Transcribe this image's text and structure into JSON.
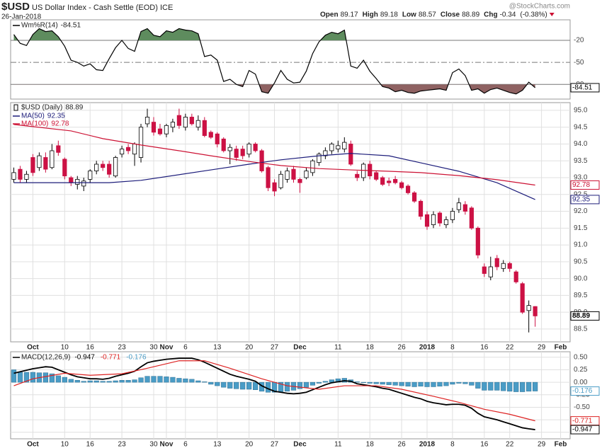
{
  "header": {
    "symbol": "$USD",
    "name": "US Dollar Index - Cash Settle (EOD) ICE",
    "date": "26-Jan-2018",
    "source": "@StockCharts.com",
    "quote_labels": [
      "Open",
      "High",
      "Low",
      "Close",
      "Chg"
    ],
    "change": -0.34,
    "change_pct": "(-0.38%)"
  },
  "chart_data": [
    {
      "type": "williams",
      "xlim": [
        -0.5,
        87.5
      ],
      "ylim": [
        -100,
        8
      ],
      "yticks": [
        -20,
        -50,
        -80
      ],
      "grid_style": [
        "solid",
        "dashdot",
        "solid"
      ],
      "fill_above_color": "#5e8c5e",
      "fill_below_color": "#8f6262",
      "series": [
        {
          "name": "Wm%R(14)",
          "color": "#000000",
          "values": [
            -12,
            -24,
            -27,
            -12,
            -4,
            -8,
            -7,
            -15,
            -28,
            -47,
            -50,
            -55,
            -52,
            -60,
            -61,
            -45,
            -30,
            -20,
            -31,
            -35,
            -8,
            -4,
            -13,
            -15,
            -7,
            -9,
            -4,
            -6,
            -7,
            -11,
            -42,
            -40,
            -47,
            -76,
            -73,
            -80,
            -83,
            -61,
            -66,
            -90,
            -92,
            -78,
            -61,
            -73,
            -78,
            -77,
            -62,
            -38,
            -22,
            -13,
            -9,
            -11,
            -6,
            -55,
            -58,
            -47,
            -62,
            -72,
            -83,
            -85,
            -90,
            -88,
            -91,
            -92,
            -89,
            -88,
            -87,
            -86,
            -88,
            -64,
            -59,
            -68,
            -88,
            -86,
            -92,
            -87,
            -85,
            -88,
            -91,
            -93,
            -88,
            -77,
            -84.51
          ]
        }
      ]
    },
    {
      "type": "candlestick",
      "name": "$USD (Daily)",
      "xlim": [
        -0.5,
        87.5
      ],
      "ylim": [
        88.12,
        95.23
      ],
      "up_color": "#ffffff",
      "down_color": "#cc1144",
      "grid": true,
      "yticks": [
        88.5,
        {
          "value": 89,
          "label": "89.0"
        },
        89.5,
        {
          "value": 90,
          "label": "90.0"
        },
        90.5,
        {
          "value": 91,
          "label": "91.0"
        },
        91.5,
        {
          "value": 92,
          "label": "92.0"
        },
        92.5,
        {
          "value": 93,
          "label": "93.0"
        },
        93.5,
        {
          "value": 94,
          "label": "94.0"
        },
        94.5,
        {
          "value": 95,
          "label": "95.0"
        }
      ],
      "xticks": [
        {
          "value": 3,
          "label": "Oct"
        },
        {
          "value": 8,
          "label": "10"
        },
        {
          "value": 12,
          "label": "16"
        },
        {
          "value": 17,
          "label": "23"
        },
        {
          "value": 22,
          "label": "30"
        },
        {
          "value": 24,
          "label": "Nov"
        },
        {
          "value": 27,
          "label": "6"
        },
        {
          "value": 32,
          "label": "13"
        },
        {
          "value": 37,
          "label": "20"
        },
        {
          "value": 41,
          "label": "27"
        },
        {
          "value": 45,
          "label": "Dec"
        },
        {
          "value": 51,
          "label": "11"
        },
        {
          "value": 56,
          "label": "18"
        },
        {
          "value": 61,
          "label": "26"
        },
        {
          "value": 65,
          "label": "2018"
        },
        {
          "value": 69,
          "label": "8"
        },
        {
          "value": 74,
          "label": "16"
        },
        {
          "value": 78,
          "label": "22"
        },
        {
          "value": 83,
          "label": "29"
        },
        {
          "value": 86,
          "label": "Feb"
        }
      ],
      "open": [
        92.95,
        93.25,
        92.95,
        93.6,
        93.3,
        93.6,
        93.3,
        93.95,
        93.55,
        93.0,
        92.8,
        92.75,
        92.95,
        93.2,
        93.4,
        93.4,
        93.05,
        93.7,
        93.9,
        93.7,
        93.6,
        94.6,
        94.65,
        94.45,
        94.3,
        94.5,
        94.85,
        94.5,
        94.8,
        94.5,
        94.7,
        94.35,
        94.3,
        94.15,
        93.8,
        93.85,
        93.85,
        93.7,
        94.0,
        93.8,
        93.3,
        92.85,
        92.7,
        92.95,
        93.25,
        92.95,
        93.0,
        93.15,
        93.45,
        93.65,
        93.8,
        93.85,
        93.85,
        94.0,
        93.1,
        93.0,
        93.4,
        93.15,
        93.0,
        92.9,
        92.95,
        92.85,
        92.75,
        92.55,
        92.3,
        91.9,
        91.6,
        91.95,
        91.6,
        91.75,
        92.05,
        92.2,
        92.1,
        91.5,
        90.35,
        90.05,
        90.6,
        90.3,
        90.45,
        90.2,
        89.85,
        89.05,
        89.17
      ],
      "high": [
        93.3,
        93.35,
        93.2,
        93.7,
        93.75,
        93.75,
        94.0,
        94.1,
        93.6,
        93.05,
        93.05,
        93.0,
        93.25,
        93.5,
        93.5,
        93.5,
        93.65,
        93.95,
        94.0,
        94.05,
        94.6,
        95.05,
        94.8,
        94.6,
        94.6,
        94.75,
        95.05,
        94.9,
        94.9,
        94.85,
        94.8,
        94.4,
        94.35,
        94.2,
        94.0,
        93.95,
        93.95,
        94.05,
        94.05,
        93.85,
        93.35,
        92.95,
        93.2,
        93.3,
        93.35,
        93.0,
        93.3,
        93.55,
        93.75,
        93.9,
        94.05,
        94.1,
        94.2,
        94.1,
        93.2,
        93.45,
        93.5,
        93.2,
        93.05,
        93.0,
        93.05,
        92.9,
        92.8,
        92.6,
        92.35,
        92.0,
        92.0,
        92.0,
        91.85,
        92.1,
        92.4,
        92.3,
        92.15,
        91.55,
        90.45,
        90.65,
        90.7,
        90.55,
        90.5,
        90.25,
        89.9,
        89.35,
        89.18
      ],
      "low": [
        92.85,
        92.85,
        92.85,
        93.05,
        93.2,
        93.15,
        93.25,
        93.65,
        92.95,
        92.75,
        92.65,
        92.6,
        92.85,
        93.1,
        93.2,
        93.0,
        93.0,
        93.6,
        93.7,
        93.35,
        93.45,
        94.5,
        94.25,
        94.25,
        94.2,
        94.35,
        94.45,
        94.4,
        94.55,
        94.4,
        94.2,
        94.15,
        93.9,
        93.75,
        93.4,
        93.5,
        93.55,
        93.6,
        93.75,
        93.15,
        92.6,
        92.45,
        92.65,
        92.85,
        92.85,
        92.55,
        92.95,
        93.05,
        93.35,
        93.55,
        93.7,
        93.75,
        93.75,
        93.35,
        92.9,
        92.9,
        92.95,
        92.9,
        92.75,
        92.75,
        92.8,
        92.65,
        92.5,
        92.25,
        91.75,
        91.45,
        91.5,
        91.55,
        91.5,
        91.65,
        91.95,
        91.9,
        91.45,
        90.6,
        90.05,
        89.95,
        90.25,
        90.2,
        90.2,
        89.85,
        88.95,
        88.4,
        88.57
      ],
      "close": [
        93.15,
        92.95,
        93.1,
        93.15,
        93.65,
        93.25,
        93.8,
        93.75,
        93.05,
        92.85,
        92.95,
        92.9,
        93.2,
        93.4,
        93.3,
        93.1,
        93.6,
        93.85,
        93.8,
        94.0,
        94.5,
        94.8,
        94.35,
        94.3,
        94.55,
        94.65,
        94.55,
        94.8,
        94.6,
        94.7,
        94.25,
        94.2,
        94.0,
        93.8,
        93.9,
        93.6,
        93.65,
        94.0,
        93.8,
        93.2,
        92.7,
        92.6,
        93.1,
        93.2,
        92.95,
        92.85,
        93.2,
        93.5,
        93.7,
        93.8,
        94.0,
        93.95,
        94.05,
        93.4,
        93.0,
        93.4,
        93.05,
        92.95,
        92.8,
        92.85,
        92.85,
        92.7,
        92.55,
        92.3,
        91.85,
        91.55,
        91.9,
        91.65,
        91.75,
        92.0,
        92.25,
        92.0,
        91.5,
        90.7,
        90.15,
        90.35,
        90.35,
        90.45,
        90.3,
        89.9,
        89.0,
        89.2,
        88.89
      ],
      "series": [
        {
          "name": "MA(50)",
          "color": "#1c1c7a",
          "x": [
            0,
            15,
            20,
            31,
            37,
            42,
            48,
            53,
            59,
            64,
            70,
            76,
            82
          ],
          "values": [
            92.85,
            92.85,
            92.92,
            93.23,
            93.4,
            93.53,
            93.65,
            93.72,
            93.65,
            93.44,
            93.19,
            92.85,
            92.35
          ]
        },
        {
          "name": "MA(100)",
          "color": "#cc1133",
          "x": [
            0,
            9,
            14,
            20,
            26,
            31,
            37,
            42,
            48,
            53,
            59,
            64,
            70,
            76,
            82
          ],
          "values": [
            94.58,
            94.39,
            94.16,
            93.97,
            93.8,
            93.65,
            93.48,
            93.36,
            93.27,
            93.23,
            93.19,
            93.15,
            93.06,
            92.94,
            92.78
          ]
        }
      ]
    },
    {
      "type": "macd",
      "xlim": [
        -0.5,
        87.5
      ],
      "ylim": [
        -1.13,
        0.61
      ],
      "grid": true,
      "yticks": [
        {
          "value": 0.5,
          "label": "0.50"
        },
        {
          "value": 0.25,
          "label": "0.25"
        },
        {
          "value": 0,
          "label": "0.00"
        },
        {
          "value": -0.25,
          "label": "-0.25"
        },
        {
          "value": -0.5,
          "label": "-0.50"
        },
        {
          "value": -0.75,
          "label": "-0.75"
        },
        {
          "value": -1,
          "label": "-1.00"
        }
      ],
      "xticks": [
        {
          "value": 3,
          "label": "Oct"
        },
        {
          "value": 8,
          "label": "10"
        },
        {
          "value": 12,
          "label": "16"
        },
        {
          "value": 17,
          "label": "23"
        },
        {
          "value": 22,
          "label": "30"
        },
        {
          "value": 24,
          "label": "Nov"
        },
        {
          "value": 27,
          "label": "6"
        },
        {
          "value": 32,
          "label": "13"
        },
        {
          "value": 37,
          "label": "20"
        },
        {
          "value": 41,
          "label": "27"
        },
        {
          "value": 45,
          "label": "Dec"
        },
        {
          "value": 51,
          "label": "11"
        },
        {
          "value": 56,
          "label": "18"
        },
        {
          "value": 61,
          "label": "26"
        },
        {
          "value": 65,
          "label": "2018"
        },
        {
          "value": 69,
          "label": "8"
        },
        {
          "value": 74,
          "label": "16"
        },
        {
          "value": 78,
          "label": "22"
        },
        {
          "value": 83,
          "label": "29"
        },
        {
          "value": 86,
          "label": "Feb"
        }
      ],
      "series": [
        {
          "name": "MACD(12,26,9)",
          "color": "#000000",
          "values": [
            0.18,
            0.21,
            0.24,
            0.27,
            0.29,
            0.31,
            0.3,
            0.25,
            0.2,
            0.15,
            0.11,
            0.09,
            0.07,
            0.07,
            0.06,
            0.08,
            0.12,
            0.15,
            0.18,
            0.22,
            0.31,
            0.39,
            0.42,
            0.44,
            0.46,
            0.47,
            0.48,
            0.48,
            0.48,
            0.45,
            0.4,
            0.34,
            0.28,
            0.22,
            0.16,
            0.12,
            0.09,
            0.06,
            0.02,
            -0.07,
            -0.13,
            -0.18,
            -0.2,
            -0.22,
            -0.23,
            -0.22,
            -0.2,
            -0.15,
            -0.1,
            -0.05,
            -0.01,
            0.01,
            0.03,
            0.02,
            -0.03,
            -0.05,
            -0.07,
            -0.09,
            -0.12,
            -0.14,
            -0.18,
            -0.22,
            -0.26,
            -0.3,
            -0.33,
            -0.38,
            -0.41,
            -0.43,
            -0.45,
            -0.44,
            -0.44,
            -0.46,
            -0.52,
            -0.62,
            -0.69,
            -0.72,
            -0.75,
            -0.79,
            -0.83,
            -0.87,
            -0.91,
            -0.93,
            -0.947
          ]
        },
        {
          "color": "#dd2222",
          "x": [
            0,
            3,
            8,
            12,
            17,
            21,
            26,
            30,
            34,
            39,
            43,
            48,
            52,
            57,
            61,
            66,
            70,
            74,
            78,
            82
          ],
          "values": [
            -0.07,
            0.07,
            0.18,
            0.14,
            0.17,
            0.28,
            0.43,
            0.43,
            0.28,
            0.07,
            -0.07,
            -0.14,
            -0.07,
            -0.07,
            -0.14,
            -0.28,
            -0.4,
            -0.54,
            -0.64,
            -0.771
          ]
        },
        {
          "color": "#4a9cc6",
          "values": [
            0.25,
            0.2,
            0.2,
            0.2,
            0.19,
            0.19,
            0.17,
            0.13,
            0.1,
            0.06,
            0.04,
            0.02,
            0.03,
            0.03,
            0.02,
            0.02,
            0.03,
            0.04,
            0.04,
            0.05,
            0.09,
            0.12,
            0.12,
            0.12,
            0.11,
            0.1,
            0.08,
            0.07,
            0.06,
            0.03,
            0.01,
            -0.04,
            -0.07,
            -0.1,
            -0.12,
            -0.13,
            -0.14,
            -0.14,
            -0.15,
            -0.18,
            -0.2,
            -0.2,
            -0.19,
            -0.18,
            -0.16,
            -0.13,
            -0.1,
            -0.06,
            -0.02,
            0.02,
            0.05,
            0.07,
            0.08,
            0.05,
            0.01,
            -0.01,
            -0.02,
            -0.03,
            -0.04,
            -0.05,
            -0.06,
            -0.07,
            -0.08,
            -0.09,
            -0.08,
            -0.09,
            -0.09,
            -0.08,
            -0.07,
            -0.04,
            -0.02,
            -0.03,
            -0.06,
            -0.12,
            -0.16,
            -0.16,
            -0.16,
            -0.17,
            -0.18,
            -0.19,
            -0.19,
            -0.18,
            -0.176
          ]
        }
      ]
    }
  ]
}
